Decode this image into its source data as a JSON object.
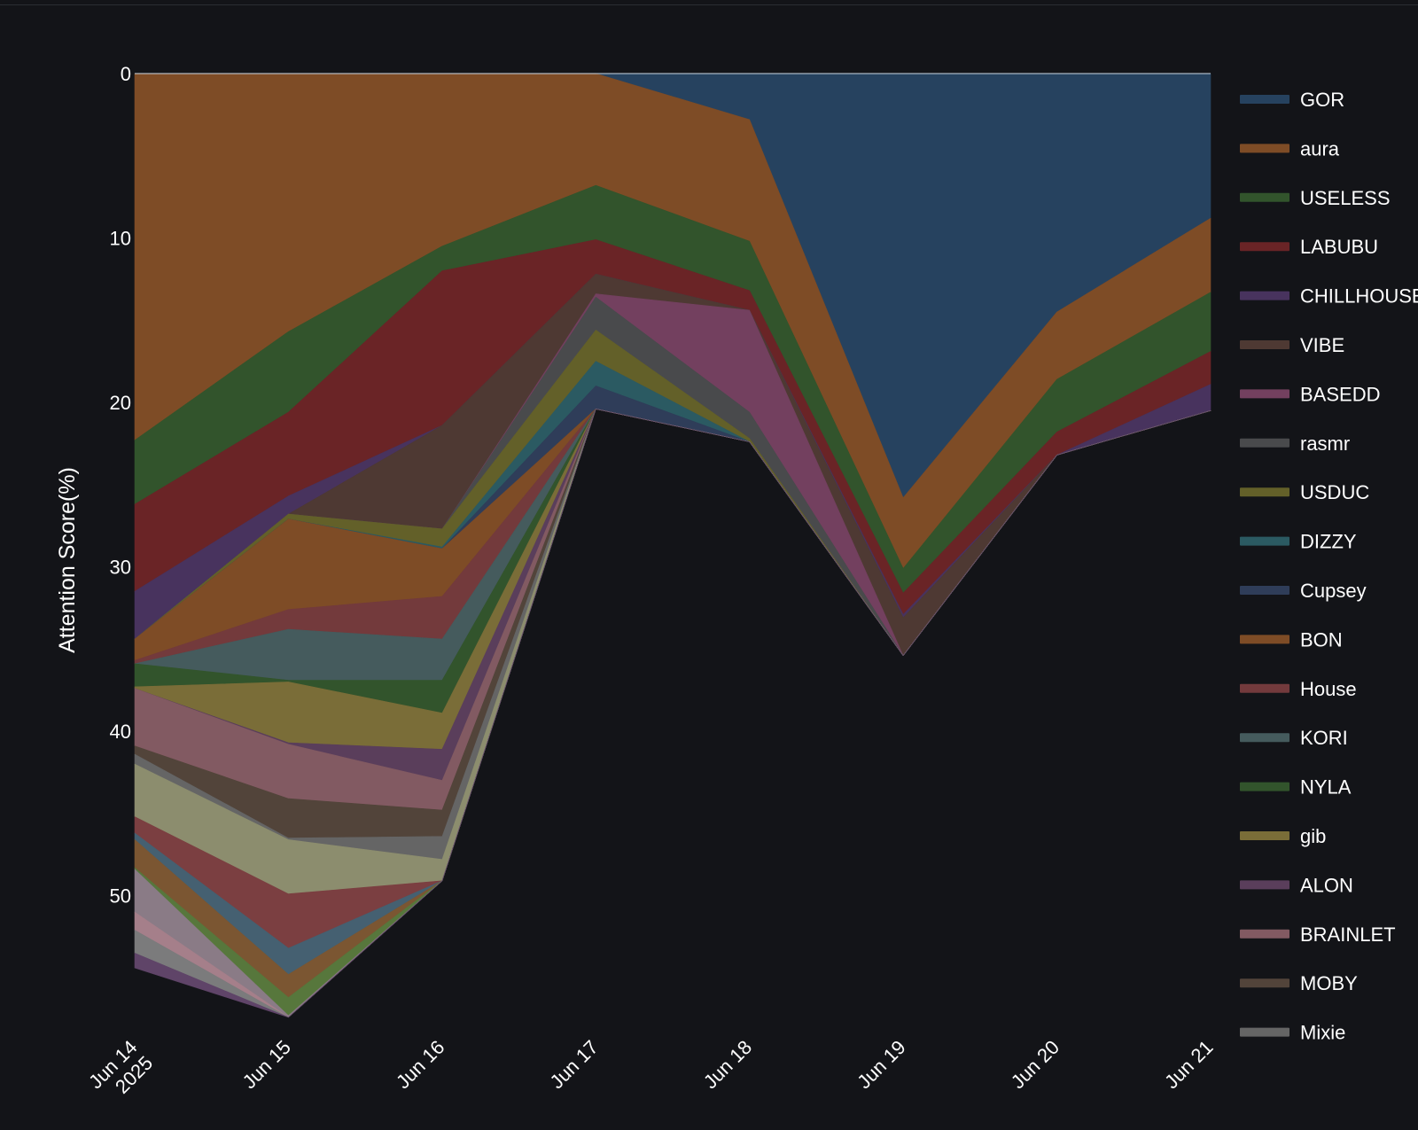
{
  "chart_data": {
    "type": "area",
    "stacked": true,
    "y_axis_reversed": true,
    "background": "#131418",
    "ylabel": "Attention Score(%)",
    "ylim": [
      0,
      55
    ],
    "yticks": [
      0,
      10,
      20,
      30,
      40,
      50
    ],
    "x": [
      "2025-06-14",
      "2025-06-15",
      "2025-06-16",
      "2025-06-17",
      "2025-06-18",
      "2025-06-19",
      "2025-06-20",
      "2025-06-21"
    ],
    "x_tick_labels": [
      "Jun 14\n2025",
      "Jun 15",
      "Jun 16",
      "Jun 17",
      "Jun 18",
      "Jun 19",
      "Jun 20",
      "Jun 21"
    ],
    "legend_position": "right",
    "series": [
      {
        "name": "GOR",
        "color": "#26425f",
        "values": [
          0,
          0,
          0,
          0,
          2.8,
          25.8,
          14.5,
          8.8
        ]
      },
      {
        "name": "aura",
        "color": "#7e4c26",
        "values": [
          22.3,
          15.7,
          10.5,
          6.8,
          7.4,
          4.3,
          4.1,
          4.5
        ]
      },
      {
        "name": "USELESS",
        "color": "#32542c",
        "values": [
          3.9,
          4.9,
          1.5,
          3.3,
          3.0,
          1.5,
          3.2,
          3.6
        ]
      },
      {
        "name": "LABUBU",
        "color": "#6a2426",
        "values": [
          5.3,
          5.1,
          9.4,
          2.1,
          1.2,
          1.3,
          1.4,
          2.0
        ]
      },
      {
        "name": "CHILLHOUSE",
        "color": "#48335e",
        "values": [
          2.9,
          1.1,
          0,
          0,
          0,
          0.2,
          0,
          1.6
        ]
      },
      {
        "name": "VIBE",
        "color": "#4e3933",
        "values": [
          0,
          0,
          6.3,
          1.2,
          0,
          2.3,
          0,
          0
        ]
      },
      {
        "name": "BASEDD",
        "color": "#73405f",
        "values": [
          0,
          0,
          0,
          0.2,
          6.2,
          0,
          0,
          0
        ]
      },
      {
        "name": "rasmr",
        "color": "#494a4c",
        "values": [
          0,
          0,
          0,
          2.0,
          1.6,
          0,
          0,
          0
        ]
      },
      {
        "name": "USDUC",
        "color": "#636029",
        "values": [
          0,
          0.3,
          1.1,
          1.9,
          0.2,
          0,
          0,
          0
        ]
      },
      {
        "name": "DIZZY",
        "color": "#2b5a62",
        "values": [
          0,
          0,
          0.1,
          1.5,
          0,
          0,
          0,
          0
        ]
      },
      {
        "name": "Cupsey",
        "color": "#2f3d59",
        "values": [
          0,
          0,
          0,
          1.4,
          0,
          0,
          0,
          0
        ]
      },
      {
        "name": "BON",
        "color": "#7e4c26",
        "values": [
          1.3,
          5.5,
          2.9,
          0,
          0,
          0,
          0,
          0
        ]
      },
      {
        "name": "House",
        "color": "#733a3c",
        "values": [
          0.2,
          1.2,
          2.6,
          0,
          0,
          0,
          0,
          0
        ]
      },
      {
        "name": "KORI",
        "color": "#455b5d",
        "values": [
          0,
          3.1,
          2.5,
          0,
          0,
          0,
          0,
          0
        ]
      },
      {
        "name": "NYLA",
        "color": "#32542c",
        "values": [
          1.4,
          0.1,
          2.0,
          0,
          0,
          0,
          0,
          0
        ]
      },
      {
        "name": "gib",
        "color": "#7a6d38",
        "values": [
          0.1,
          3.7,
          2.2,
          0,
          0,
          0,
          0,
          0
        ]
      },
      {
        "name": "ALON",
        "color": "#5a3e5b",
        "values": [
          0,
          0.1,
          1.9,
          0,
          0,
          0,
          0,
          0
        ]
      },
      {
        "name": "BRAINLET",
        "color": "#825a62",
        "values": [
          3.5,
          3.3,
          1.8,
          0,
          0,
          0,
          0,
          0
        ]
      },
      {
        "name": "MOBY",
        "color": "#52443a",
        "values": [
          0.5,
          2.4,
          1.6,
          0,
          0,
          0,
          0,
          0
        ]
      },
      {
        "name": "Mixie",
        "color": "#656565",
        "values": [
          0.6,
          0.1,
          1.4,
          0,
          0,
          0,
          0,
          0
        ]
      },
      {
        "name": "",
        "color": "#8c8d6e",
        "values": [
          3.2,
          3.3,
          1.3,
          0,
          0,
          0,
          0,
          0
        ]
      },
      {
        "name": "",
        "color": "#7b3f41",
        "values": [
          1.0,
          3.3,
          0,
          0,
          0,
          0,
          0,
          0
        ]
      },
      {
        "name": "",
        "color": "#456071",
        "values": [
          0.4,
          1.6,
          0,
          0,
          0,
          0,
          0,
          0
        ]
      },
      {
        "name": "",
        "color": "#7b5632",
        "values": [
          1.7,
          1.4,
          0,
          0,
          0,
          0,
          0,
          0
        ]
      },
      {
        "name": "",
        "color": "#57773c",
        "values": [
          0.1,
          1.1,
          0,
          0,
          0,
          0,
          0,
          0
        ]
      },
      {
        "name": "",
        "color": "#8a7b86",
        "values": [
          2.6,
          0.1,
          0,
          0,
          0,
          0,
          0,
          0
        ]
      },
      {
        "name": "",
        "color": "#a57f8a",
        "values": [
          1.1,
          0,
          0,
          0,
          0,
          0,
          0,
          0
        ]
      },
      {
        "name": "",
        "color": "#7b7b7c",
        "values": [
          1.4,
          0,
          0,
          0,
          0,
          0,
          0,
          0
        ]
      },
      {
        "name": "",
        "color": "#5f4468",
        "values": [
          0.9,
          0,
          0,
          0,
          0,
          0,
          0,
          0
        ]
      }
    ],
    "legend_items": [
      "GOR",
      "aura",
      "USELESS",
      "LABUBU",
      "CHILLHOUSE",
      "VIBE",
      "BASEDD",
      "rasmr",
      "USDUC",
      "DIZZY",
      "Cupsey",
      "BON",
      "House",
      "KORI",
      "NYLA",
      "gib",
      "ALON",
      "BRAINLET",
      "MOBY",
      "Mixie"
    ]
  }
}
